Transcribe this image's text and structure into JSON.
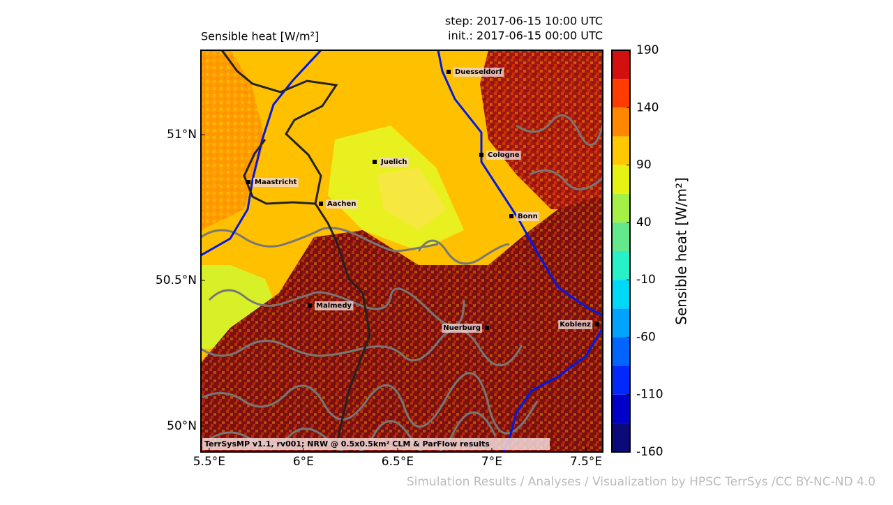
{
  "header": {
    "title": "Sensible heat [W/m²]",
    "step": "step: 2017-06-15 10:00 UTC",
    "init": "init.: 2017-06-15 00:00 UTC"
  },
  "map": {
    "xlim": [
      5.456,
      7.589
    ],
    "ylim": [
      49.911,
      51.29
    ],
    "xticks": [
      {
        "value": 5.5,
        "label": "5.5°E"
      },
      {
        "value": 6,
        "label": "6°E"
      },
      {
        "value": 6.5,
        "label": "6.5°E"
      },
      {
        "value": 7,
        "label": "7°E"
      },
      {
        "value": 7.5,
        "label": "7.5°E"
      }
    ],
    "yticks": [
      {
        "value": 50,
        "label": "50°N"
      },
      {
        "value": 50.5,
        "label": "50.5°N"
      },
      {
        "value": 51,
        "label": "51°N"
      }
    ],
    "cities": [
      "Duesseldorf",
      "Cologne",
      "Juelich",
      "Maastricht",
      "Aachen",
      "Bonn",
      "Malmedy",
      "Nuerburg",
      "Koblenz"
    ],
    "credit": "TerrSysMP v1.1, rv001; NRW @ 0.5x0.5km² CLM & ParFlow results"
  },
  "colorbar": {
    "label": "Sensible heat [W/m²]",
    "levels": [
      -160,
      -135,
      -110,
      -85,
      -60,
      -35,
      -10,
      15,
      40,
      65,
      90,
      115,
      140,
      165,
      190
    ],
    "colors": [
      "#0a0a78",
      "#0000c8",
      "#0028ff",
      "#0064ff",
      "#00a4ff",
      "#00d8f8",
      "#28f0c8",
      "#64e88c",
      "#a4f046",
      "#e6f214",
      "#ffc800",
      "#ff8800",
      "#ff3c00",
      "#d21010",
      "#7a1010"
    ],
    "ticks": [
      -160,
      -110,
      -60,
      -10,
      40,
      90,
      140,
      190
    ]
  },
  "footer": "Simulation Results / Analyses / Visualization by HPSC TerrSys /CC BY-NC-ND 4.0"
}
